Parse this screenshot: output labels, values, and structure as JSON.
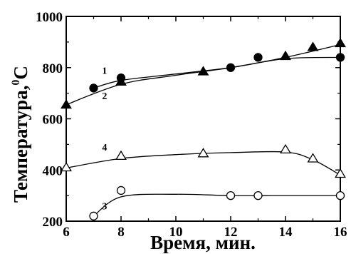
{
  "chart_data": {
    "type": "scatter",
    "title": "",
    "xlabel": "Время, мин.",
    "ylabel": "Температура,",
    "ylabel_sup": "0",
    "ylabel_unit": "С",
    "xlim": [
      6,
      16
    ],
    "ylim": [
      200,
      1000
    ],
    "xticks": [
      6,
      8,
      10,
      12,
      14,
      16
    ],
    "yticks": [
      200,
      400,
      600,
      800,
      1000
    ],
    "xtick_labels": [
      "6",
      "8",
      "10",
      "12",
      "14",
      "16"
    ],
    "ytick_labels": [
      "200",
      "400",
      "600",
      "800",
      "1000"
    ],
    "grid": false,
    "series": [
      {
        "name": "1",
        "marker": "filled-circle",
        "x": [
          7,
          8,
          12,
          13,
          16
        ],
        "y": [
          720,
          760,
          800,
          840,
          840
        ],
        "curve": [
          [
            7,
            720
          ],
          [
            8,
            750
          ],
          [
            10,
            775
          ],
          [
            12,
            800
          ],
          [
            14,
            835
          ],
          [
            16,
            840
          ]
        ],
        "label_pos": [
          7.4,
          790
        ]
      },
      {
        "name": "2",
        "marker": "filled-triangle",
        "x": [
          6,
          8,
          11,
          14,
          15,
          16
        ],
        "y": [
          655,
          745,
          785,
          845,
          880,
          895
        ],
        "curve": [
          [
            6,
            655
          ],
          [
            8,
            735
          ],
          [
            10,
            770
          ],
          [
            12,
            800
          ],
          [
            14,
            840
          ],
          [
            16,
            890
          ]
        ],
        "label_pos": [
          7.4,
          690
        ]
      },
      {
        "name": "4",
        "marker": "open-triangle",
        "x": [
          6,
          8,
          11,
          14,
          15,
          16
        ],
        "y": [
          410,
          455,
          465,
          480,
          445,
          385
        ],
        "curve": [
          [
            6,
            408
          ],
          [
            8,
            445
          ],
          [
            10,
            460
          ],
          [
            12,
            468
          ],
          [
            14,
            470
          ],
          [
            15,
            440
          ],
          [
            16,
            380
          ]
        ],
        "label_pos": [
          7.4,
          490
        ]
      },
      {
        "name": "3",
        "marker": "open-circle",
        "x": [
          7,
          8,
          12,
          13,
          16
        ],
        "y": [
          220,
          320,
          300,
          300,
          300
        ],
        "curve": [
          [
            7,
            220
          ],
          [
            8,
            295
          ],
          [
            10,
            305
          ],
          [
            12,
            300
          ],
          [
            14,
            300
          ],
          [
            16,
            300
          ]
        ],
        "label_pos": [
          7.4,
          260
        ]
      }
    ]
  }
}
